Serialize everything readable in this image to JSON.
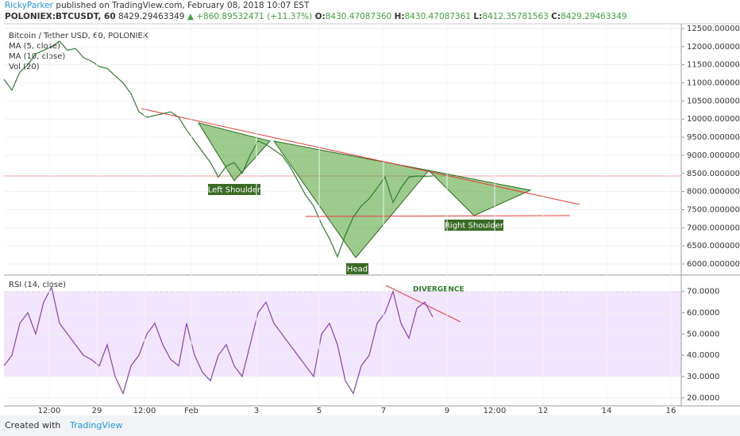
{
  "header": {
    "publisher": "RickyParker",
    "published": "published on TradingView.com, February 08, 2018 10:07 EST",
    "symbol": "POLONIEX:BTCUSDT, 60",
    "last": "8429.29463349",
    "change": "▲ +860.89532471 (+11.37%)",
    "open_label": "O:",
    "open": "8430.47087360",
    "high_label": "H:",
    "high": "8430.47087361",
    "low_label": "L:",
    "low": "8412.35781563",
    "close_label": "C:",
    "close": "8429.29463349"
  },
  "time_axis": [
    "12:00",
    "29",
    "12:00",
    "Feb",
    "3",
    "5",
    "7",
    "9",
    "12:00",
    "12",
    "14",
    "16"
  ],
  "chart_data": [
    {
      "type": "line",
      "title": "Bitcoin / Tether USD, 60, POLONIEX",
      "indicators": [
        "MA (5, close)",
        "MA (10, close)",
        "Vol (20)"
      ],
      "color": "#2e7d32",
      "values": [
        11100,
        10800,
        11300,
        11500,
        11800,
        11900,
        12000,
        12150,
        11900,
        11950,
        11700,
        11600,
        11450,
        11400,
        11200,
        11000,
        10700,
        10200,
        10050,
        10100,
        10150,
        10200,
        10050,
        9700,
        9400,
        9100,
        8800,
        8400,
        8700,
        8800,
        8500,
        9000,
        9400,
        9300,
        9150,
        9000,
        8700,
        8300,
        7900,
        7600,
        7100,
        6700,
        6200,
        6800,
        7300,
        7600,
        7800,
        8100,
        8400,
        7700,
        8100,
        8400,
        8430,
        8420,
        8429
      ],
      "ylim": [
        5694,
        12631
      ],
      "yticks": [
        {
          "value": 6000,
          "label": "6000.00000000"
        },
        {
          "value": 6500,
          "label": "6500.00000000"
        },
        {
          "value": 7000,
          "label": "7000.00000000"
        },
        {
          "value": 7500,
          "label": "7500.00000000"
        },
        {
          "value": 8000,
          "label": "8000.00000000"
        },
        {
          "value": 8500,
          "label": "8500.00000000"
        },
        {
          "value": 9000,
          "label": "9000.00000000"
        },
        {
          "value": 9500,
          "label": "9500.00000000"
        },
        {
          "value": 10000,
          "label": "10000.00000000"
        },
        {
          "value": 10500,
          "label": "10500.00000000"
        },
        {
          "value": 11000,
          "label": "11000.00000000"
        },
        {
          "value": 11500,
          "label": "11500.00000000"
        },
        {
          "value": 12000,
          "label": "12000.00000000"
        },
        {
          "value": 12500,
          "label": "12500.00000000"
        }
      ],
      "annotations": [
        "Left Shoulder",
        "Head",
        "Right Shoulder"
      ]
    },
    {
      "type": "line",
      "title": "RSI (14, close)",
      "color": "#8e3fb5",
      "values": [
        35,
        40,
        55,
        60,
        50,
        65,
        72,
        55,
        50,
        45,
        40,
        38,
        35,
        45,
        30,
        22,
        35,
        40,
        50,
        55,
        45,
        38,
        35,
        55,
        40,
        32,
        28,
        40,
        45,
        35,
        30,
        45,
        60,
        65,
        55,
        50,
        45,
        40,
        35,
        30,
        50,
        55,
        45,
        28,
        22,
        35,
        40,
        55,
        60,
        70,
        55,
        48,
        62,
        65,
        58
      ],
      "ylim": [
        16.2,
        77.7
      ],
      "band": [
        30,
        70
      ],
      "yticks": [
        {
          "value": 20,
          "label": "20.0000"
        },
        {
          "value": 30,
          "label": "30.0000"
        },
        {
          "value": 40,
          "label": "40.0000"
        },
        {
          "value": 50,
          "label": "50.0000"
        },
        {
          "value": 60,
          "label": "60.0000"
        },
        {
          "value": 70,
          "label": "70.0000"
        }
      ],
      "annotations": [
        "DIVERGENCE"
      ]
    }
  ],
  "footer": {
    "created": "Created with",
    "brand": "TradingView"
  }
}
